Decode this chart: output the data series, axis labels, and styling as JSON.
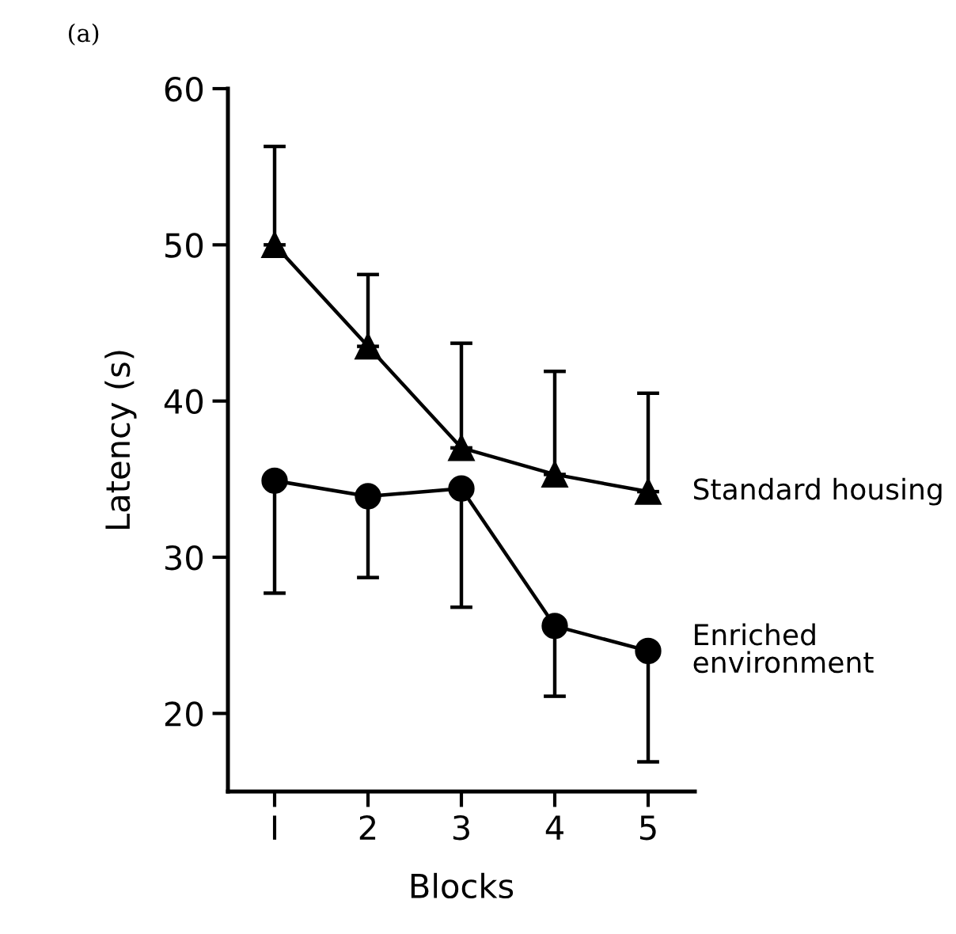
{
  "chart_data": {
    "type": "line",
    "xlabel": "Blocks",
    "ylabel": "Latency (s)",
    "x": [
      1,
      2,
      3,
      4,
      5
    ],
    "series": [
      {
        "name": "Standard housing",
        "color": "#000000",
        "marker": "triangle",
        "values": [
          50.0,
          43.5,
          37.0,
          35.3,
          34.2
        ],
        "errors": [
          [
            50.0,
            56.3
          ],
          [
            43.5,
            48.1
          ],
          [
            37.0,
            43.7
          ],
          [
            35.3,
            41.9
          ],
          [
            34.2,
            40.5
          ]
        ]
      },
      {
        "name": "Enriched environment",
        "color": "#000000",
        "marker": "circle",
        "values": [
          34.9,
          33.9,
          34.4,
          25.6,
          24.0
        ],
        "errors": [
          [
            27.7,
            34.9
          ],
          [
            28.7,
            33.9
          ],
          [
            26.8,
            34.4
          ],
          [
            21.1,
            25.6
          ],
          [
            16.9,
            24.0
          ]
        ]
      }
    ],
    "xlim": [
      0.5,
      5.5
    ],
    "xticks": [
      {
        "value": 1,
        "label": "I"
      },
      2,
      3,
      4,
      5
    ],
    "ylim": [
      15,
      60
    ],
    "yticks": [
      20,
      30,
      40,
      50,
      60
    ],
    "annotations": [
      "(a)"
    ],
    "grid": false,
    "legend": false,
    "line_style": "solid"
  }
}
